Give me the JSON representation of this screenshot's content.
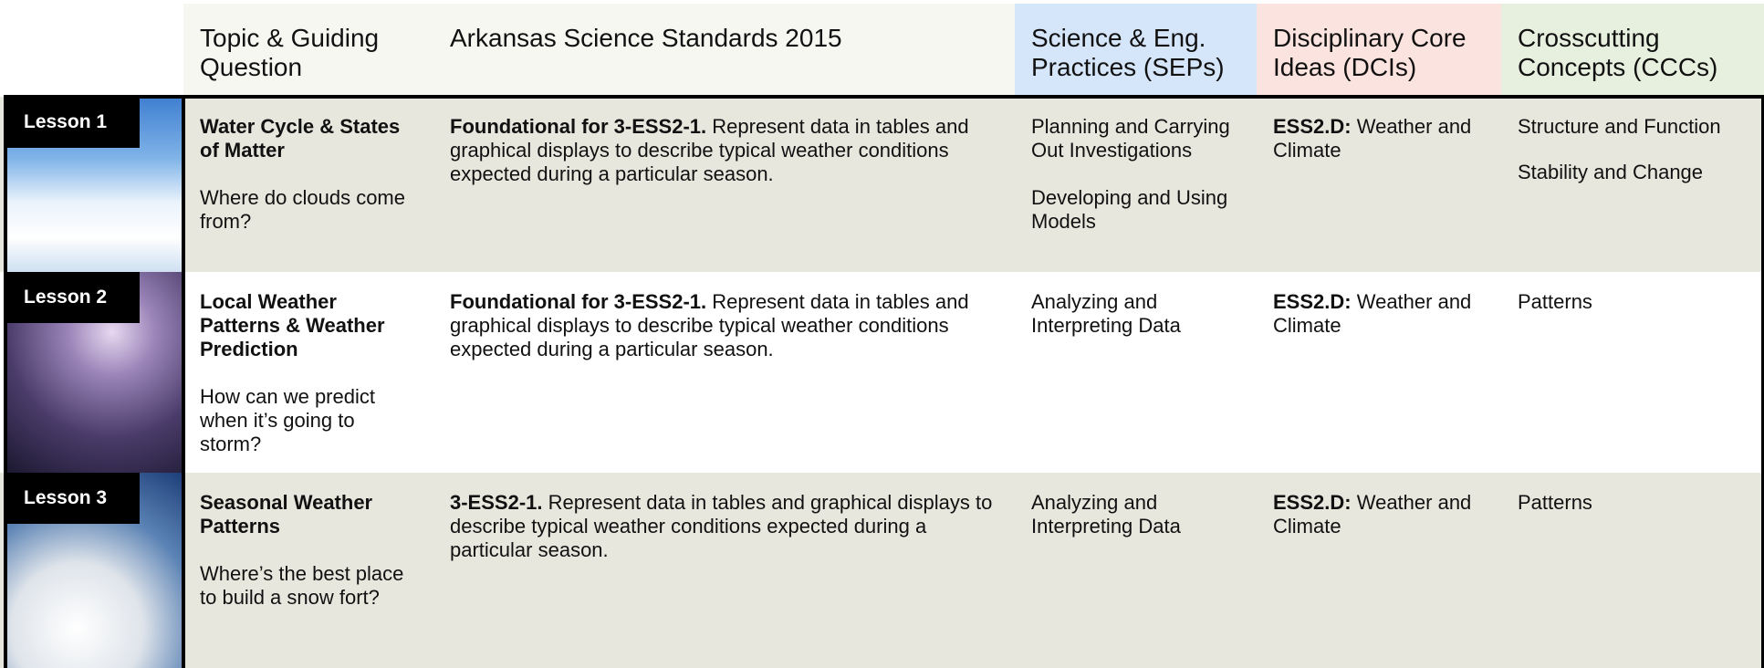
{
  "header": {
    "columns": [
      "Topic & Guiding Question",
      "Arkansas Science Standards 2015",
      "Science & Eng. Practices (SEPs)",
      "Disciplinary Core Ideas (DCIs)",
      "Crosscutting Concepts (CCCs)"
    ]
  },
  "rows": [
    {
      "lesson": "Lesson 1",
      "topic": "Water Cycle & States of Matter",
      "question": "Where do clouds come from?",
      "standard_code": "Foundational for 3-ESS2-1.",
      "standard_text": "Represent data in tables and graphical displays to describe typical weather conditions expected during a particular season.",
      "seps": [
        "Planning and Carrying Out Investigations",
        "Developing and Using Models"
      ],
      "dci_code": "ESS2.D:",
      "dci_text": "Weather and Climate",
      "cccs": [
        "Structure and Function",
        "Stability and Change"
      ]
    },
    {
      "lesson": "Lesson 2",
      "topic": "Local Weather Patterns & Weather Prediction",
      "question": "How can we predict when it’s going to storm?",
      "standard_code": "Foundational for 3-ESS2-1.",
      "standard_text": "Represent data in tables and graphical displays to describe typical weather conditions expected during a particular season.",
      "seps": [
        "Analyzing and Interpreting Data"
      ],
      "dci_code": "ESS2.D:",
      "dci_text": "Weather and Climate",
      "cccs": [
        "Patterns"
      ]
    },
    {
      "lesson": "Lesson 3",
      "topic": "Seasonal Weather Patterns",
      "question": "Where’s the best place to build a snow fort?",
      "standard_code": "3-ESS2-1.",
      "standard_text": "Represent data in tables and graphical displays to describe typical weather conditions expected during a particular season.",
      "seps": [
        "Analyzing and Interpreting Data"
      ],
      "dci_code": "ESS2.D:",
      "dci_text": "Weather and Climate",
      "cccs": [
        "Patterns"
      ]
    }
  ]
}
